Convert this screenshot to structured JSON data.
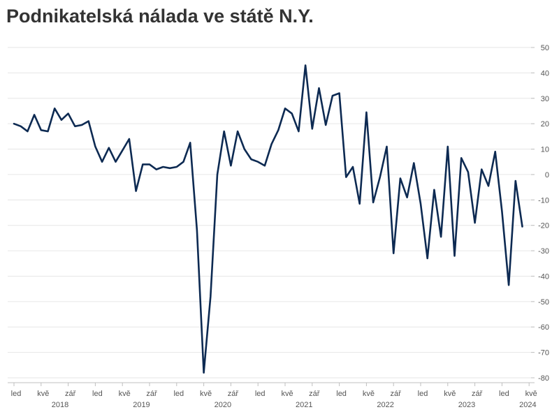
{
  "chart_data": {
    "type": "line",
    "title": "Podnikatelská nálada ve státě N.Y.",
    "xlabel": "",
    "ylabel": "",
    "ylim": [
      -80,
      50
    ],
    "yticks": [
      50,
      40,
      30,
      20,
      10,
      0,
      -10,
      -20,
      -30,
      -40,
      -50,
      -60,
      -70,
      -80
    ],
    "grid": "horizontal",
    "legend": "none",
    "line_color": "#0d2a52",
    "x_start": "2018-01",
    "month_ticks": [
      {
        "month_index": 0,
        "label": "led"
      },
      {
        "month_index": 4,
        "label": "kvě"
      },
      {
        "month_index": 8,
        "label": "zář"
      },
      {
        "month_index": 12,
        "label": "led"
      },
      {
        "month_index": 16,
        "label": "kvě"
      },
      {
        "month_index": 20,
        "label": "zář"
      },
      {
        "month_index": 24,
        "label": "led"
      },
      {
        "month_index": 28,
        "label": "kvě"
      },
      {
        "month_index": 32,
        "label": "zář"
      },
      {
        "month_index": 36,
        "label": "led"
      },
      {
        "month_index": 40,
        "label": "kvě"
      },
      {
        "month_index": 44,
        "label": "zář"
      },
      {
        "month_index": 48,
        "label": "led"
      },
      {
        "month_index": 52,
        "label": "kvě"
      },
      {
        "month_index": 56,
        "label": "zář"
      },
      {
        "month_index": 60,
        "label": "led"
      },
      {
        "month_index": 64,
        "label": "kvě"
      },
      {
        "month_index": 68,
        "label": "zář"
      },
      {
        "month_index": 72,
        "label": "led"
      },
      {
        "month_index": 76,
        "label": "kvě"
      }
    ],
    "year_labels": [
      {
        "month_index": 6.5,
        "label": "2018"
      },
      {
        "month_index": 18.5,
        "label": "2019"
      },
      {
        "month_index": 30.5,
        "label": "2020"
      },
      {
        "month_index": 42.5,
        "label": "2021"
      },
      {
        "month_index": 54.5,
        "label": "2022"
      },
      {
        "month_index": 66.5,
        "label": "2023"
      },
      {
        "month_index": 75.5,
        "label": "2024"
      }
    ],
    "series": [
      {
        "values": [
          20,
          19,
          17,
          23.5,
          17.5,
          17,
          26,
          21.5,
          24,
          19,
          19.5,
          21,
          11,
          5,
          10.5,
          5,
          9.5,
          14,
          -6.5,
          4,
          4,
          2,
          3,
          2.5,
          3,
          5,
          12.5,
          -22,
          -78,
          -48,
          0,
          17,
          3.5,
          17,
          10,
          6,
          5,
          3.5,
          12,
          17.5,
          26,
          24,
          17,
          43,
          18,
          34,
          19.5,
          31,
          32,
          -1,
          3,
          -11.5,
          24.5,
          -11,
          -1,
          11,
          -31,
          -1.5,
          -9,
          4.5,
          -11.5,
          -33,
          -6,
          -24.5,
          11,
          -32,
          6.5,
          1,
          -19,
          2,
          -4.5,
          9,
          -14.5,
          -43.5,
          -2.5,
          -20.5
        ]
      }
    ]
  }
}
